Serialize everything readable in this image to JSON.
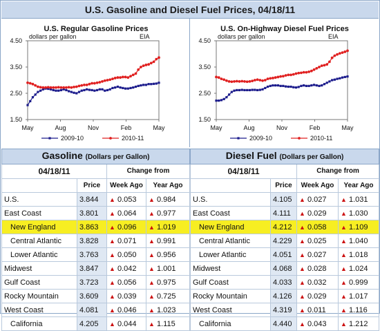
{
  "title": "U.S. Gasoline and Diesel Fuel Prices, 04/18/11",
  "chart_data": [
    {
      "type": "line",
      "title": "U.S. Regular Gasoline Prices",
      "ylabel": "dollars per gallon",
      "source": "EIA",
      "ylim": [
        1.5,
        4.5
      ],
      "yticks": [
        "1.50",
        "2.50",
        "3.50",
        "4.50"
      ],
      "xticks": [
        "May",
        "Aug",
        "Nov",
        "Feb",
        "May"
      ],
      "x": [
        0,
        1,
        2,
        3,
        4,
        5,
        6,
        7,
        8,
        9,
        10,
        11,
        12,
        13,
        14,
        15,
        16,
        17,
        18,
        19,
        20,
        21,
        22,
        23,
        24,
        25,
        26,
        27,
        28,
        29,
        30,
        31,
        32,
        33,
        34,
        35,
        36,
        37,
        38,
        39,
        40,
        41,
        42,
        43,
        44,
        45,
        46,
        47,
        48,
        49,
        50,
        51
      ],
      "series": [
        {
          "name": "2009-10",
          "color": "#1c1c8c",
          "values": [
            2.05,
            2.2,
            2.35,
            2.45,
            2.55,
            2.6,
            2.65,
            2.68,
            2.67,
            2.65,
            2.62,
            2.6,
            2.6,
            2.62,
            2.65,
            2.62,
            2.58,
            2.55,
            2.52,
            2.5,
            2.55,
            2.6,
            2.62,
            2.65,
            2.63,
            2.62,
            2.6,
            2.62,
            2.65,
            2.65,
            2.6,
            2.62,
            2.65,
            2.7,
            2.72,
            2.75,
            2.72,
            2.7,
            2.68,
            2.68,
            2.7,
            2.72,
            2.75,
            2.78,
            2.8,
            2.82,
            2.82,
            2.85,
            2.85,
            2.86,
            2.87,
            2.9
          ]
        },
        {
          "name": "2010-11",
          "color": "#e02020",
          "values": [
            2.9,
            2.88,
            2.85,
            2.8,
            2.75,
            2.73,
            2.72,
            2.72,
            2.73,
            2.72,
            2.72,
            2.72,
            2.73,
            2.72,
            2.72,
            2.72,
            2.73,
            2.72,
            2.74,
            2.75,
            2.78,
            2.8,
            2.82,
            2.82,
            2.85,
            2.88,
            2.88,
            2.9,
            2.92,
            2.95,
            2.98,
            3.0,
            3.02,
            3.05,
            3.08,
            3.1,
            3.1,
            3.12,
            3.12,
            3.1,
            3.15,
            3.2,
            3.25,
            3.4,
            3.5,
            3.55,
            3.58,
            3.6,
            3.65,
            3.7,
            3.8,
            3.86
          ]
        }
      ]
    },
    {
      "type": "line",
      "title": "U.S. On-Highway Diesel Fuel Prices",
      "ylabel": "dollars per gallon",
      "source": "EIA",
      "ylim": [
        1.5,
        4.5
      ],
      "yticks": [
        "1.50",
        "2.50",
        "3.50",
        "4.50"
      ],
      "xticks": [
        "May",
        "Aug",
        "Nov",
        "Feb",
        "May"
      ],
      "x": [
        0,
        1,
        2,
        3,
        4,
        5,
        6,
        7,
        8,
        9,
        10,
        11,
        12,
        13,
        14,
        15,
        16,
        17,
        18,
        19,
        20,
        21,
        22,
        23,
        24,
        25,
        26,
        27,
        28,
        29,
        30,
        31,
        32,
        33,
        34,
        35,
        36,
        37,
        38,
        39,
        40,
        41,
        42,
        43,
        44,
        45,
        46,
        47,
        48,
        49,
        50,
        51
      ],
      "series": [
        {
          "name": "2009-10",
          "color": "#1c1c8c",
          "values": [
            2.22,
            2.22,
            2.24,
            2.28,
            2.35,
            2.45,
            2.55,
            2.6,
            2.62,
            2.62,
            2.63,
            2.62,
            2.62,
            2.62,
            2.63,
            2.63,
            2.62,
            2.63,
            2.65,
            2.7,
            2.75,
            2.78,
            2.8,
            2.8,
            2.8,
            2.78,
            2.78,
            2.76,
            2.75,
            2.75,
            2.73,
            2.72,
            2.74,
            2.78,
            2.8,
            2.78,
            2.78,
            2.8,
            2.82,
            2.8,
            2.78,
            2.8,
            2.85,
            2.9,
            2.95,
            3.0,
            3.02,
            3.05,
            3.07,
            3.1,
            3.12,
            3.14
          ]
        },
        {
          "name": "2010-11",
          "color": "#e02020",
          "values": [
            3.12,
            3.1,
            3.05,
            3.02,
            2.98,
            2.95,
            2.94,
            2.95,
            2.96,
            2.95,
            2.96,
            2.95,
            2.94,
            2.95,
            2.97,
            3.0,
            3.02,
            3.0,
            2.98,
            3.0,
            3.05,
            3.07,
            3.08,
            3.1,
            3.12,
            3.14,
            3.15,
            3.18,
            3.2,
            3.2,
            3.22,
            3.25,
            3.27,
            3.28,
            3.3,
            3.3,
            3.32,
            3.35,
            3.4,
            3.45,
            3.5,
            3.55,
            3.57,
            3.6,
            3.7,
            3.85,
            3.93,
            3.98,
            4.02,
            4.05,
            4.08,
            4.12
          ]
        }
      ]
    }
  ],
  "gas": {
    "heading": "Gasoline",
    "heading_sub": "(Dollars per Gallon)",
    "date": "04/18/11",
    "change_from": "Change from",
    "col_price": "Price",
    "col_week": "Week Ago",
    "col_year": "Year Ago",
    "rows": [
      {
        "region": "U.S.",
        "price": "3.844",
        "week": "0.053",
        "year": "0.984"
      },
      {
        "region": "East Coast",
        "price": "3.801",
        "week": "0.064",
        "year": "0.977"
      },
      {
        "region": "New England",
        "price": "3.863",
        "week": "0.096",
        "year": "1.019"
      },
      {
        "region": "Central Atlantic",
        "price": "3.828",
        "week": "0.071",
        "year": "0.991"
      },
      {
        "region": "Lower Atlantic",
        "price": "3.763",
        "week": "0.050",
        "year": "0.956"
      },
      {
        "region": "Midwest",
        "price": "3.847",
        "week": "0.042",
        "year": "1.001"
      },
      {
        "region": "Gulf Coast",
        "price": "3.723",
        "week": "0.056",
        "year": "0.975"
      },
      {
        "region": "Rocky Mountain",
        "price": "3.609",
        "week": "0.039",
        "year": "0.725"
      },
      {
        "region": "West Coast",
        "price": "4.081",
        "week": "0.046",
        "year": "1.023"
      },
      {
        "region": "California",
        "price": "4.205",
        "week": "0.044",
        "year": "1.115"
      }
    ]
  },
  "diesel": {
    "heading": "Diesel Fuel",
    "heading_sub": "(Dollars per Gallon)",
    "date": "04/18/11",
    "change_from": "Change from",
    "col_price": "Price",
    "col_week": "Week Ago",
    "col_year": "Year Ago",
    "rows": [
      {
        "region": "U.S.",
        "price": "4.105",
        "week": "0.027",
        "year": "1.031"
      },
      {
        "region": "East Coast",
        "price": "4.111",
        "week": "0.029",
        "year": "1.030"
      },
      {
        "region": "New England",
        "price": "4.212",
        "week": "0.058",
        "year": "1.109"
      },
      {
        "region": "Central Atlantic",
        "price": "4.229",
        "week": "0.025",
        "year": "1.040"
      },
      {
        "region": "Lower Atlantic",
        "price": "4.051",
        "week": "0.027",
        "year": "1.018"
      },
      {
        "region": "Midwest",
        "price": "4.068",
        "week": "0.028",
        "year": "1.024"
      },
      {
        "region": "Gulf Coast",
        "price": "4.033",
        "week": "0.032",
        "year": "0.999"
      },
      {
        "region": "Rocky Mountain",
        "price": "4.126",
        "week": "0.029",
        "year": "1.017"
      },
      {
        "region": "West Coast",
        "price": "4.319",
        "week": "0.011",
        "year": "1.116"
      },
      {
        "region": "California",
        "price": "4.440",
        "week": "0.043",
        "year": "1.212"
      }
    ]
  },
  "arrow_glyph": "▲",
  "arrow_color": "#cc1111",
  "highlight_color": "#f7ee22"
}
